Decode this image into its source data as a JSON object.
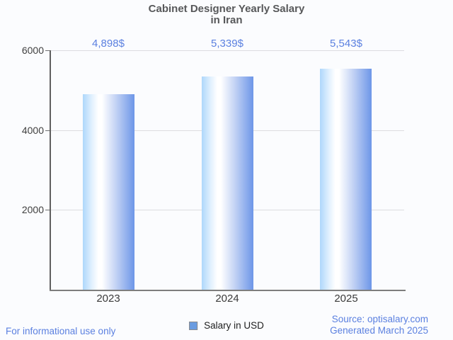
{
  "title": {
    "line1": "Cabinet Designer Yearly Salary",
    "line2": "in Iran"
  },
  "chart_data": {
    "type": "bar",
    "title": "Cabinet Designer Yearly Salary in Iran",
    "categories": [
      "2023",
      "2024",
      "2025"
    ],
    "values": [
      4898,
      5339,
      5543
    ],
    "value_labels": [
      "4,898$",
      "5,339$",
      "5,543$"
    ],
    "series": [
      {
        "name": "Salary in USD",
        "values": [
          4898,
          5339,
          5543
        ]
      }
    ],
    "xlabel": "",
    "ylabel": "",
    "ylim": [
      0,
      6000
    ],
    "yticks": [
      2000,
      4000,
      6000
    ],
    "grid": true,
    "legend_position": "bottom",
    "colors": {
      "bar_gradient": [
        "#aed7fb",
        "#ffffff",
        "#6d96e8"
      ],
      "value_label": "#5b80e0",
      "gridline": "#dcdce0",
      "axis": "#6f6f6f"
    }
  },
  "legend": {
    "label": "Salary in USD",
    "swatch_color": "#6a9ce1"
  },
  "footer": {
    "left": "For informational use only",
    "source": "Source: optisalary.com",
    "generated": "Generated March 2025"
  }
}
